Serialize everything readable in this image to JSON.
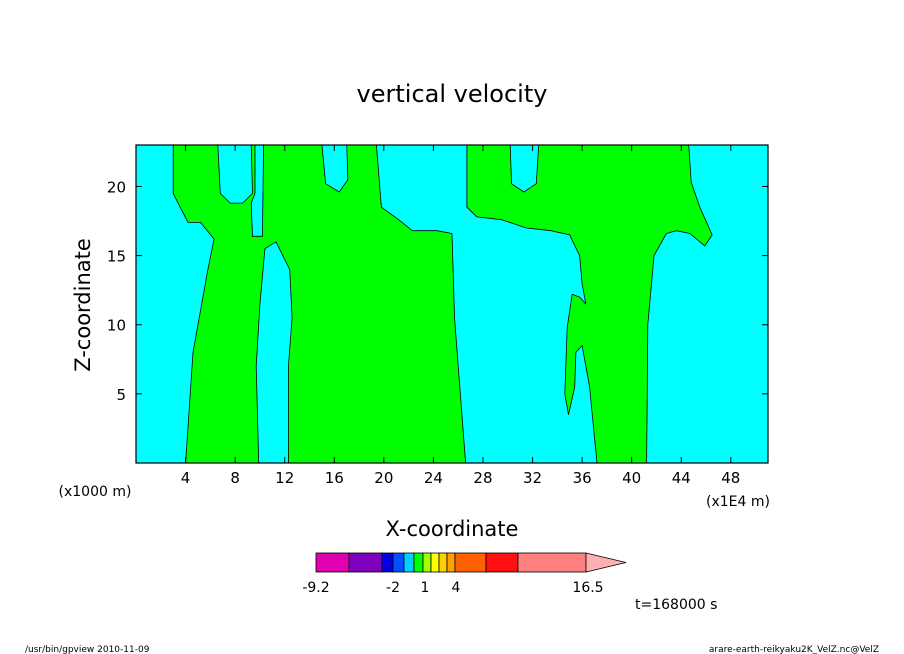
{
  "chart_data": {
    "type": "heatmap",
    "title": "vertical velocity",
    "xlabel": "X-coordinate",
    "ylabel": "Z-coordinate",
    "x_unit_left": "(x1000 m)",
    "x_unit_right": "(x1E4 m)",
    "xlim": [
      0,
      51
    ],
    "ylim": [
      0,
      23
    ],
    "x_ticks": [
      4,
      8,
      12,
      16,
      20,
      24,
      28,
      32,
      36,
      40,
      44,
      48
    ],
    "y_ticks": [
      5,
      10,
      15,
      20
    ],
    "regions": [
      {
        "name": "positive-region-1",
        "level": "0 to 1",
        "color": "#00ff00",
        "boundary": [
          [
            4.0,
            0
          ],
          [
            4.6,
            8
          ],
          [
            5.8,
            14
          ],
          [
            6.3,
            16.2
          ],
          [
            5.2,
            17.4
          ],
          [
            4.2,
            17.4
          ],
          [
            3.0,
            19.5
          ],
          [
            3.0,
            23
          ],
          [
            6.6,
            23
          ],
          [
            6.8,
            19.5
          ],
          [
            7.6,
            18.8
          ],
          [
            8.6,
            18.8
          ],
          [
            9.4,
            19.5
          ],
          [
            9.3,
            23
          ],
          [
            9.6,
            23
          ],
          [
            9.6,
            19.5
          ],
          [
            9.3,
            18.8
          ],
          [
            9.4,
            16.4
          ],
          [
            10.2,
            16.4
          ],
          [
            10.3,
            23
          ],
          [
            15.0,
            23
          ],
          [
            15.3,
            20.2
          ],
          [
            16.4,
            19.6
          ],
          [
            17.1,
            20.5
          ],
          [
            17.0,
            23
          ],
          [
            19.4,
            23
          ],
          [
            19.8,
            18.5
          ],
          [
            21.2,
            17.6
          ],
          [
            22.3,
            16.8
          ],
          [
            24.3,
            16.8
          ],
          [
            25.5,
            16.6
          ],
          [
            25.7,
            10.5
          ],
          [
            26.6,
            0
          ],
          [
            12.3,
            0
          ],
          [
            12.3,
            7
          ],
          [
            12.6,
            10.5
          ],
          [
            12.4,
            14
          ],
          [
            11.3,
            16.0
          ],
          [
            10.4,
            15.5
          ],
          [
            10.0,
            11.5
          ],
          [
            9.7,
            7
          ],
          [
            9.9,
            0
          ]
        ]
      },
      {
        "name": "positive-region-2",
        "level": "0 to 1",
        "color": "#00ff00",
        "boundary": [
          [
            37.2,
            0
          ],
          [
            36.6,
            5.5
          ],
          [
            36.0,
            8.5
          ],
          [
            35.5,
            8.0
          ],
          [
            35.4,
            5.5
          ],
          [
            34.9,
            3.5
          ],
          [
            34.6,
            5.0
          ],
          [
            34.8,
            9.8
          ],
          [
            35.2,
            12.2
          ],
          [
            35.8,
            12.0
          ],
          [
            36.3,
            11.5
          ],
          [
            36.0,
            13.0
          ],
          [
            35.8,
            15.0
          ],
          [
            35.0,
            16.5
          ],
          [
            33.5,
            16.8
          ],
          [
            31.5,
            17.0
          ],
          [
            29.5,
            17.6
          ],
          [
            27.5,
            17.8
          ],
          [
            26.7,
            18.5
          ],
          [
            26.7,
            23
          ],
          [
            30.2,
            23
          ],
          [
            30.3,
            20.2
          ],
          [
            31.3,
            19.6
          ],
          [
            32.3,
            20.2
          ],
          [
            32.5,
            23
          ],
          [
            44.6,
            23
          ],
          [
            44.8,
            20.3
          ],
          [
            45.5,
            18.5
          ],
          [
            46.5,
            16.5
          ],
          [
            45.9,
            15.7
          ],
          [
            44.7,
            16.6
          ],
          [
            43.6,
            16.8
          ],
          [
            42.8,
            16.6
          ],
          [
            41.8,
            15.0
          ],
          [
            41.3,
            10.0
          ],
          [
            41.2,
            0
          ]
        ]
      }
    ],
    "background": {
      "level": "-1 to 0",
      "color": "#00ffff"
    },
    "colorbar": {
      "labels": [
        "-9.2",
        "-2",
        "1",
        "4",
        "16.5"
      ],
      "colors": [
        "#e000b0",
        "#8000c0",
        "#0000e0",
        "#0050ff",
        "#00d0ff",
        "#00ff00",
        "#a0ff00",
        "#ffff00",
        "#ffd000",
        "#ffa000",
        "#ff6000",
        "#ff1010",
        "#ff8080",
        "#ffb0b0"
      ]
    },
    "time_label": "t=168000 s"
  },
  "footer": {
    "left": "/usr/bin/gpview  2010-11-09",
    "right": "arare-earth-reikyaku2K_VelZ.nc@VelZ"
  }
}
